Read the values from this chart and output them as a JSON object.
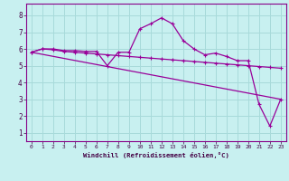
{
  "xlabel": "Windchill (Refroidissement éolien,°C)",
  "background_color": "#c8f0f0",
  "grid_color": "#a8dada",
  "line_color": "#990099",
  "xlim": [
    -0.5,
    23.5
  ],
  "ylim": [
    0.5,
    8.7
  ],
  "yticks": [
    1,
    2,
    3,
    4,
    5,
    6,
    7,
    8
  ],
  "xticks": [
    0,
    1,
    2,
    3,
    4,
    5,
    6,
    7,
    8,
    9,
    10,
    11,
    12,
    13,
    14,
    15,
    16,
    17,
    18,
    19,
    20,
    21,
    22,
    23
  ],
  "series1_x": [
    0,
    1,
    2,
    3,
    4,
    5,
    6,
    7,
    8,
    9,
    10,
    11,
    12,
    13,
    14,
    15,
    16,
    17,
    18,
    19,
    20,
    21,
    22,
    23
  ],
  "series1_y": [
    5.8,
    6.0,
    6.0,
    5.9,
    5.9,
    5.85,
    5.85,
    5.0,
    5.8,
    5.8,
    7.2,
    7.5,
    7.85,
    7.5,
    6.5,
    6.0,
    5.65,
    5.75,
    5.55,
    5.3,
    5.3,
    2.7,
    1.4,
    3.0
  ],
  "series2_x": [
    0,
    1,
    2,
    3,
    4,
    5,
    6,
    7,
    8,
    9,
    10,
    11,
    12,
    13,
    14,
    15,
    16,
    17,
    18,
    19,
    20,
    21,
    22,
    23
  ],
  "series2_y": [
    5.8,
    6.0,
    5.95,
    5.85,
    5.8,
    5.75,
    5.7,
    5.65,
    5.6,
    5.55,
    5.5,
    5.45,
    5.4,
    5.35,
    5.3,
    5.25,
    5.2,
    5.15,
    5.1,
    5.05,
    5.0,
    4.95,
    4.9,
    4.85
  ],
  "series3_x": [
    0,
    23
  ],
  "series3_y": [
    5.8,
    3.0
  ]
}
